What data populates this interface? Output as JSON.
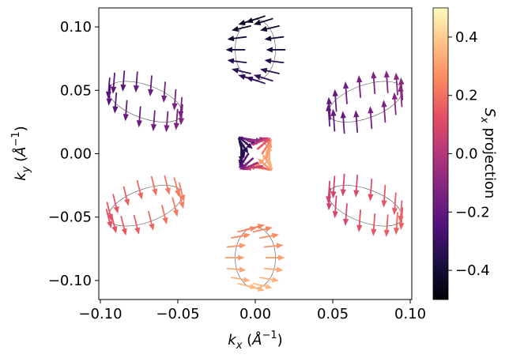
{
  "chart_data": {
    "type": "quiver",
    "xlabel": "k_x  (Å^-1)",
    "ylabel": "k_y  (Å^-1)",
    "xlim": [
      -0.101,
      0.101
    ],
    "ylim": [
      -0.115,
      0.115
    ],
    "xticks": [
      -0.1,
      -0.05,
      0.0,
      0.05,
      0.1
    ],
    "xtick_labels": [
      "−0.10",
      "−0.05",
      "0.00",
      "0.05",
      "0.10"
    ],
    "yticks": [
      -0.1,
      -0.05,
      0.0,
      0.05,
      0.1
    ],
    "ytick_labels": [
      "−0.10",
      "−0.05",
      "0.00",
      "0.05",
      "0.10"
    ],
    "colorbar": {
      "label": "S_x projection",
      "colormap": "magma",
      "range": [
        -0.5,
        0.5
      ],
      "ticks": [
        -0.4,
        -0.2,
        0.0,
        0.2,
        0.4
      ],
      "tick_labels": [
        "−0.4",
        "−0.2",
        "0.0",
        "0.2",
        "0.4"
      ]
    },
    "grid": false,
    "contours": [
      {
        "name": "top",
        "cx": 0.0,
        "cy": 0.082,
        "rx": 0.013,
        "ry": 0.024,
        "angle": 0,
        "sx": -0.38
      },
      {
        "name": "upper-left",
        "cx": -0.071,
        "cy": 0.041,
        "rx": 0.025,
        "ry": 0.013,
        "angle": -20,
        "sx": -0.18
      },
      {
        "name": "upper-right",
        "cx": 0.071,
        "cy": 0.041,
        "rx": 0.025,
        "ry": 0.013,
        "angle": 20,
        "sx": -0.15
      },
      {
        "name": "lower-left",
        "cx": -0.071,
        "cy": -0.041,
        "rx": 0.025,
        "ry": 0.013,
        "angle": 20,
        "sx": 0.18
      },
      {
        "name": "lower-right",
        "cx": 0.071,
        "cy": -0.041,
        "rx": 0.025,
        "ry": 0.013,
        "angle": -20,
        "sx": 0.12
      },
      {
        "name": "bottom",
        "cx": 0.0,
        "cy": -0.082,
        "rx": 0.013,
        "ry": 0.024,
        "angle": 0,
        "sx": 0.3
      },
      {
        "name": "center",
        "cx": 0.0,
        "cy": 0.0,
        "rx": 0.009,
        "ry": 0.011,
        "angle": 0,
        "sx": 0.0
      }
    ]
  }
}
